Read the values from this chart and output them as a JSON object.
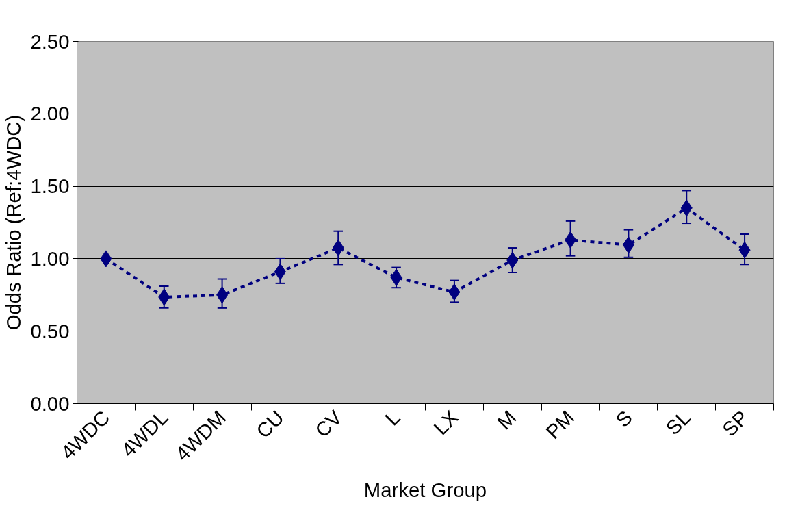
{
  "chart_data": {
    "type": "line",
    "xlabel": "Market Group",
    "ylabel": "Odds Ratio (Ref:4WDC)",
    "categories": [
      "4WDC",
      "4WDL",
      "4WDM",
      "CU",
      "CV",
      "L",
      "LX",
      "M",
      "PM",
      "S",
      "SL",
      "SP"
    ],
    "series": [
      {
        "color": "#000080",
        "values": [
          1.0,
          0.735,
          0.75,
          0.91,
          1.075,
          0.87,
          0.77,
          0.99,
          1.13,
          1.095,
          1.35,
          1.06
        ],
        "errors": [
          null,
          [
            0.66,
            0.81
          ],
          [
            0.66,
            0.86
          ],
          [
            0.83,
            1.0
          ],
          [
            0.96,
            1.19
          ],
          [
            0.8,
            0.94
          ],
          [
            0.7,
            0.85
          ],
          [
            0.905,
            1.075
          ],
          [
            1.02,
            1.26
          ],
          [
            1.01,
            1.2
          ],
          [
            1.245,
            1.47
          ],
          [
            0.96,
            1.17
          ]
        ]
      }
    ],
    "ylim": [
      0,
      2.5
    ],
    "yticks": [
      {
        "value": 0,
        "label": "0.00"
      },
      {
        "value": 0.5,
        "label": "0.50"
      },
      {
        "value": 1,
        "label": "1.00"
      },
      {
        "value": 1.5,
        "label": "1.50"
      },
      {
        "value": 2,
        "label": "2.00"
      },
      {
        "value": 2.5,
        "label": "2.50"
      }
    ],
    "grid": "y",
    "marker": "diamond",
    "line_style": "dashed"
  }
}
